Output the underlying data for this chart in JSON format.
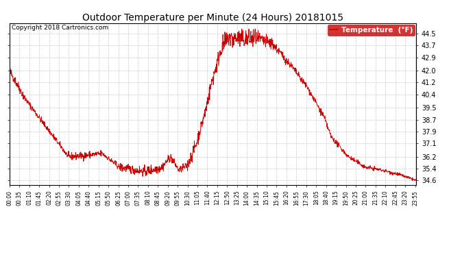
{
  "title": "Outdoor Temperature per Minute (24 Hours) 20181015",
  "copyright": "Copyright 2018 Cartronics.com",
  "legend_label": "Temperature  (°F)",
  "line_color": "#cc0000",
  "background_color": "#ffffff",
  "grid_color": "#bbbbbb",
  "legend_bg": "#cc0000",
  "legend_text_color": "#ffffff",
  "ylim": [
    34.3,
    45.2
  ],
  "yticks": [
    34.6,
    35.4,
    36.2,
    37.1,
    37.9,
    38.7,
    39.5,
    40.4,
    41.2,
    42.0,
    42.9,
    43.7,
    44.5
  ],
  "xtick_interval_minutes": 35,
  "total_minutes": 1440
}
